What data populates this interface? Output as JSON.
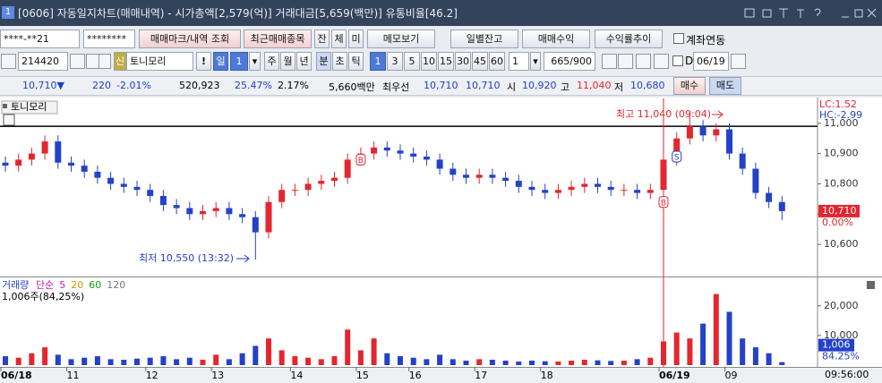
{
  "title_bar": {
    "icon": "1",
    "title": "[0606] 자동일지차트(매매내역) - 시가총액[2,579(억)] 거래대금[5,659(백만)] 유통비율[46.2]"
  },
  "toolbar1": [
    "****-**21",
    "********",
    "매매마크/내역 조회",
    "최근매매종목",
    "잔",
    "체",
    "미",
    "메모보기",
    "일별잔고",
    "매매수익",
    "수익률추이",
    "계좌연동"
  ],
  "toolbar2": [
    "214420",
    "신",
    "토니모리",
    "!",
    "일",
    "1",
    "주",
    "월",
    "년",
    "분",
    "초",
    "틱",
    "1",
    "3",
    "5",
    "10",
    "15",
    "30",
    "45",
    "60",
    "1",
    "665/900",
    "D",
    "06/19"
  ],
  "quote": [
    "10,710▼",
    "220",
    "-2.01%",
    "520,923",
    "25.47%",
    "2.17%",
    "5,660백만",
    "최우선",
    "10,710",
    "10,710",
    "시",
    "10,920",
    "고",
    "11,040",
    "저",
    "10,680",
    "매수",
    "매도"
  ],
  "chart_data": [
    {
      "type": "candlestick",
      "title": "토니모리",
      "categories": [
        "06/18",
        null,
        null,
        null,
        null,
        "11",
        null,
        null,
        null,
        null,
        null,
        "12",
        null,
        null,
        null,
        null,
        "13",
        null,
        null,
        null,
        null,
        null,
        "14",
        null,
        null,
        null,
        null,
        "15",
        null,
        null,
        null,
        "16",
        null,
        null,
        null,
        null,
        "17",
        null,
        null,
        null,
        null,
        "18",
        null,
        null,
        null,
        null,
        null,
        null,
        null,
        null,
        "06/19",
        null,
        null,
        null,
        null,
        "09",
        null,
        null,
        null,
        null
      ],
      "open": [
        10870,
        10860,
        10880,
        10900,
        10940,
        10870,
        10860,
        10840,
        10820,
        10800,
        10790,
        10780,
        10760,
        10730,
        10720,
        10700,
        10710,
        10720,
        10700,
        10690,
        10640,
        10740,
        10780,
        10780,
        10800,
        10810,
        10820,
        10880,
        10900,
        10920,
        10910,
        10900,
        10890,
        10880,
        10850,
        10830,
        10820,
        10830,
        10820,
        10810,
        10790,
        10780,
        10770,
        10780,
        10790,
        10800,
        10790,
        10780,
        10780,
        10770,
        10780,
        10880,
        10950,
        10990,
        10960,
        10980,
        10900,
        10850,
        10770,
        10740
      ],
      "high": [
        10890,
        10900,
        10920,
        10960,
        10960,
        10890,
        10880,
        10860,
        10840,
        10820,
        10810,
        10800,
        10780,
        10750,
        10740,
        10730,
        10740,
        10740,
        10720,
        10710,
        10760,
        10800,
        10800,
        10820,
        10830,
        10840,
        10900,
        10920,
        10940,
        10940,
        10930,
        10920,
        10910,
        10900,
        10870,
        10850,
        10850,
        10850,
        10840,
        10830,
        10810,
        10800,
        10800,
        10810,
        10820,
        10820,
        10810,
        10800,
        10800,
        10800,
        10900,
        10970,
        11040,
        11010,
        11000,
        11000,
        10920,
        10870,
        10790,
        10760
      ],
      "low": [
        10840,
        10840,
        10860,
        10880,
        10850,
        10840,
        10820,
        10800,
        10780,
        10770,
        10760,
        10740,
        10710,
        10700,
        10680,
        10680,
        10690,
        10680,
        10670,
        10550,
        10620,
        10720,
        10760,
        10760,
        10780,
        10790,
        10800,
        10860,
        10880,
        10890,
        10880,
        10870,
        10860,
        10830,
        10810,
        10800,
        10800,
        10800,
        10790,
        10770,
        10760,
        10750,
        10750,
        10760,
        10770,
        10770,
        10760,
        10760,
        10750,
        10750,
        10760,
        10860,
        10930,
        10940,
        10940,
        10880,
        10830,
        10750,
        10720,
        10680
      ],
      "close": [
        10860,
        10880,
        10900,
        10940,
        10870,
        10860,
        10840,
        10820,
        10800,
        10790,
        10780,
        10760,
        10730,
        10720,
        10700,
        10710,
        10720,
        10700,
        10690,
        10640,
        10740,
        10780,
        10780,
        10800,
        10810,
        10820,
        10880,
        10900,
        10920,
        10910,
        10900,
        10890,
        10880,
        10850,
        10830,
        10820,
        10830,
        10820,
        10810,
        10790,
        10780,
        10770,
        10780,
        10790,
        10800,
        10790,
        10780,
        10780,
        10770,
        10780,
        10880,
        10950,
        10990,
        10960,
        10980,
        10900,
        10850,
        10770,
        10740,
        10710
      ],
      "up_color": "#e3262f",
      "down_color": "#2441c8",
      "ylim": [
        10497,
        11082
      ],
      "yticks": [
        {
          "value": 11000,
          "label": "11,000"
        },
        {
          "value": 10900,
          "label": "10,900"
        },
        {
          "value": 10800,
          "label": "10,800"
        },
        {
          "value": 10700,
          "label": "10,700"
        },
        {
          "value": 10600,
          "label": "10,600"
        }
      ],
      "reference_line": 10990,
      "lc": "LC:1.52",
      "hc": "HC:-2.99",
      "high_note": "최고 11,040 (09:04)",
      "low_note": "최저 10,550 (13:32)",
      "price_tag": {
        "label": "10,710",
        "value": 10710,
        "change": "0.00%"
      },
      "markers": [
        {
          "label": "B",
          "index": 27,
          "value": 10880,
          "color": "#e3262f"
        },
        {
          "label": "B",
          "index": 50,
          "value": 10740,
          "color": "#e3262f",
          "vline": true
        },
        {
          "label": "S",
          "index": 51,
          "value": 10890,
          "color": "#2441c8"
        }
      ],
      "time": "09:56:00"
    },
    {
      "type": "bar",
      "title": "거래량",
      "legend": [
        "단순",
        "5",
        "20",
        "60",
        "120"
      ],
      "legend_colors": [
        "#c020c0",
        "#c020c0",
        "#c8a000",
        "#10a010",
        "#777777"
      ],
      "subtitle": "1,006주(84,25%)",
      "values": [
        3000,
        2500,
        4000,
        6000,
        3500,
        2000,
        2500,
        3000,
        2000,
        1800,
        2200,
        2500,
        3000,
        2000,
        2500,
        1800,
        3500,
        2000,
        4000,
        6500,
        9000,
        5000,
        3000,
        2500,
        2000,
        3000,
        12000,
        5000,
        9000,
        4000,
        3000,
        2500,
        2000,
        3500,
        2000,
        1500,
        2000,
        1800,
        1500,
        1200,
        1500,
        1300,
        1200,
        1500,
        1800,
        1600,
        1400,
        1500,
        2000,
        2500,
        8000,
        11000,
        9000,
        14000,
        24000,
        18000,
        9000,
        6000,
        4000,
        1006
      ],
      "ylim": [
        0,
        29000
      ],
      "yticks": [
        {
          "value": 20000,
          "label": "20,000"
        },
        {
          "value": 10000,
          "label": "10,000"
        }
      ],
      "last_tag": {
        "label": "1,006",
        "value": 1006,
        "ratio": "84.25%"
      }
    }
  ]
}
